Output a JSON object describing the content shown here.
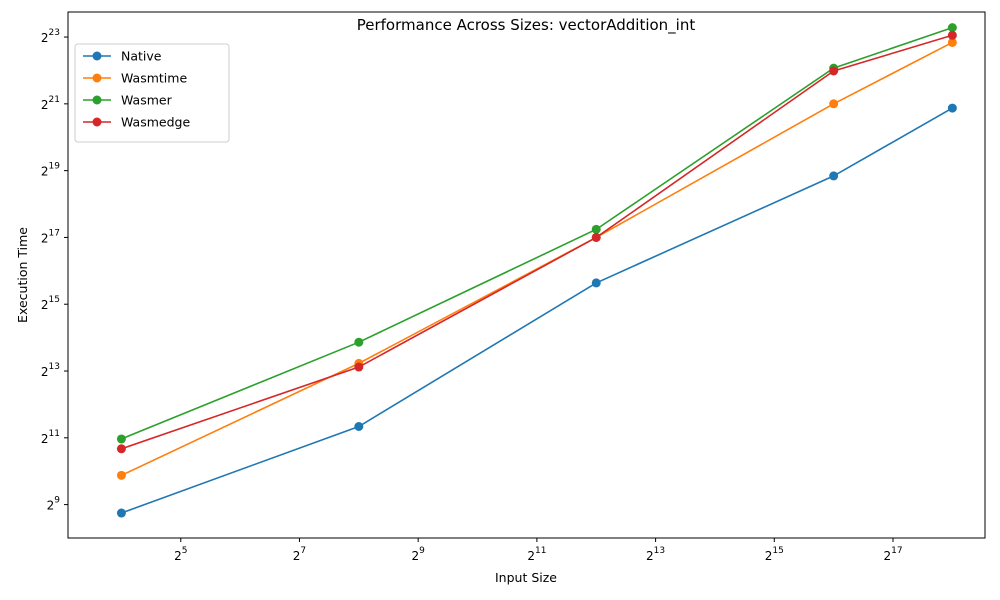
{
  "chart_data": {
    "type": "line",
    "title": "Performance Across Sizes: vectorAddition_int",
    "xlabel": "Input Size",
    "ylabel": "Execution Time",
    "xscale": "log2",
    "yscale": "log2",
    "xlim_log2": [
      3.1,
      18.55
    ],
    "ylim_log2": [
      8.0,
      23.75
    ],
    "x_tick_exponents": [
      5,
      7,
      9,
      11,
      13,
      15,
      17
    ],
    "y_tick_exponents": [
      9,
      11,
      13,
      15,
      17,
      19,
      21,
      23
    ],
    "tick_base": "2",
    "grid": false,
    "legend_position": "top-left",
    "x": [
      16,
      256,
      4096,
      65536,
      262144
    ],
    "series": [
      {
        "name": "Native",
        "color": "#1f77b4",
        "values": [
          430,
          2590,
          51000,
          470000,
          1920000
        ]
      },
      {
        "name": "Wasmtime",
        "color": "#ff7f0e",
        "values": [
          940,
          9600,
          131000,
          2100000,
          7500000
        ]
      },
      {
        "name": "Wasmer",
        "color": "#2ca02c",
        "values": [
          2000,
          14900,
          155000,
          4400000,
          10200000
        ]
      },
      {
        "name": "Wasmedge",
        "color": "#d62728",
        "values": [
          1630,
          8900,
          131000,
          4150000,
          8700000
        ]
      }
    ]
  }
}
